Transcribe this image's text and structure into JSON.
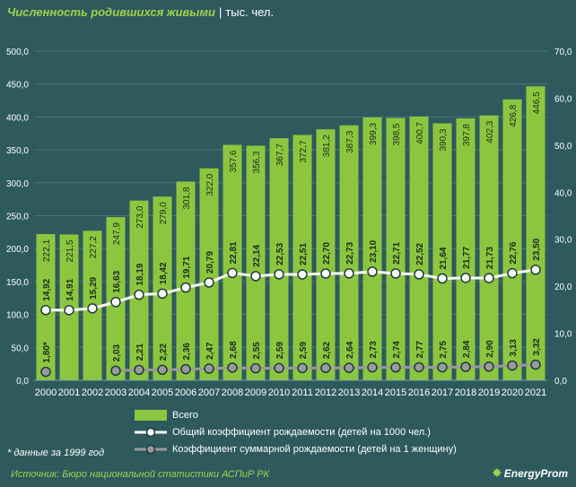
{
  "title": "Численность родившихся живыми",
  "separator": "|",
  "unit": "тыс. чел.",
  "footnote": "* данные за 1999 год",
  "source": "Источник: Бюро национальной статистики АСПиР РК",
  "logo_text": "EnergyProm",
  "colors": {
    "background": "#2e5a5e",
    "bar": "#8cc63f",
    "title": "#9fd34a",
    "line_general": "#ffffff",
    "line_fertility": "#9a9a9a",
    "grid": "#4a7478"
  },
  "chart_data": {
    "type": "bar",
    "categories": [
      "2000",
      "2001",
      "2002",
      "2003",
      "2004",
      "2005",
      "2006",
      "2007",
      "2008",
      "2009",
      "2010",
      "2011",
      "2012",
      "2013",
      "2014",
      "2015",
      "2016",
      "2017",
      "2018",
      "2019",
      "2020",
      "2021"
    ],
    "ylim": [
      0,
      500
    ],
    "y_ticks": [
      "0,0",
      "50,0",
      "100,0",
      "150,0",
      "200,0",
      "250,0",
      "300,0",
      "350,0",
      "400,0",
      "450,0",
      "500,0"
    ],
    "y2lim": [
      0,
      70
    ],
    "y2_ticks": [
      "0,0",
      "10,0",
      "20,0",
      "30,0",
      "40,0",
      "50,0",
      "60,0",
      "70,0"
    ],
    "grid": true,
    "legend_position": "bottom",
    "series": [
      {
        "name": "Всего",
        "type": "bar",
        "axis": "left",
        "values": [
          222.1,
          221.5,
          227.2,
          247.9,
          273.0,
          279.0,
          301.8,
          322.0,
          357.6,
          356.3,
          367.7,
          372.7,
          381.2,
          387.3,
          399.3,
          398.5,
          400.7,
          390.3,
          397.8,
          402.3,
          426.8,
          446.5
        ],
        "labels": [
          "222,1",
          "221,5",
          "227,2",
          "247,9",
          "273,0",
          "279,0",
          "301,8",
          "322,0",
          "357,6",
          "356,3",
          "367,7",
          "372,7",
          "381,2",
          "387,3",
          "399,3",
          "398,5",
          "400,7",
          "390,3",
          "397,8",
          "402,3",
          "426,8",
          "446,5"
        ]
      },
      {
        "name": "Общий коэффициент рождаемости (детей на 1000 чел.)",
        "type": "line",
        "axis": "right",
        "values": [
          14.92,
          14.91,
          15.29,
          16.63,
          18.19,
          18.42,
          19.71,
          20.79,
          22.81,
          22.14,
          22.53,
          22.51,
          22.7,
          22.73,
          23.1,
          22.71,
          22.52,
          21.64,
          21.77,
          21.73,
          22.76,
          23.5
        ],
        "labels": [
          "14,92",
          "14,91",
          "15,29",
          "16,63",
          "18,19",
          "18,42",
          "19,71",
          "20,79",
          "22,81",
          "22,14",
          "22,53",
          "22,51",
          "22,70",
          "22,73",
          "23,10",
          "22,71",
          "22,52",
          "21,64",
          "21,77",
          "21,73",
          "22,76",
          "23,50"
        ]
      },
      {
        "name": "Коэффициент суммарной рождаемости (детей на 1 женщину)",
        "type": "line",
        "axis": "right",
        "values": [
          1.8,
          null,
          null,
          2.03,
          2.21,
          2.22,
          2.36,
          2.47,
          2.68,
          2.55,
          2.59,
          2.59,
          2.62,
          2.64,
          2.73,
          2.74,
          2.77,
          2.75,
          2.84,
          2.9,
          3.13,
          3.32
        ],
        "labels": [
          "1,80*",
          "",
          "",
          "2,03",
          "2,21",
          "2,22",
          "2,36",
          "2,47",
          "2,68",
          "2,55",
          "2,59",
          "2,59",
          "2,62",
          "2,64",
          "2,73",
          "2,74",
          "2,77",
          "2,75",
          "2,84",
          "2,90",
          "3,13",
          "3,32"
        ]
      }
    ]
  }
}
